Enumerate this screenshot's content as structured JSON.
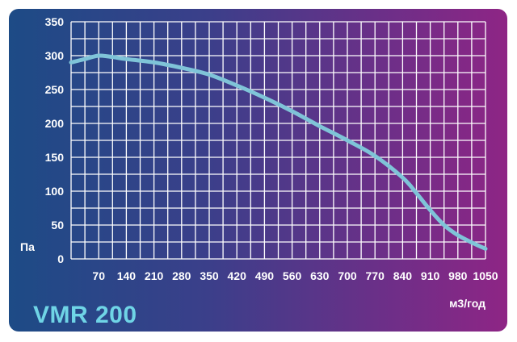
{
  "chart_data": {
    "type": "line",
    "title": "VMR 200",
    "xlabel": "м3/год",
    "ylabel": "Па",
    "xlim": [
      0,
      1050
    ],
    "ylim": [
      0,
      350
    ],
    "x_ticks": [
      70,
      140,
      210,
      280,
      350,
      420,
      490,
      560,
      630,
      700,
      770,
      840,
      910,
      980,
      1050
    ],
    "y_ticks": [
      0,
      50,
      100,
      150,
      200,
      250,
      300,
      350
    ],
    "grid": true,
    "series": [
      {
        "x": [
          0,
          35,
          70,
          105,
          140,
          210,
          280,
          350,
          420,
          490,
          560,
          630,
          700,
          770,
          840,
          875,
          910,
          945,
          980,
          1020,
          1050
        ],
        "values": [
          290,
          295,
          300,
          298,
          295,
          290,
          282,
          272,
          256,
          238,
          218,
          196,
          175,
          152,
          120,
          97,
          72,
          50,
          35,
          23,
          15
        ]
      }
    ],
    "colors": {
      "line": "#7fc4d8",
      "grid": "#ffffff",
      "text": "#ffffff",
      "model": "#6fd4e6"
    }
  }
}
